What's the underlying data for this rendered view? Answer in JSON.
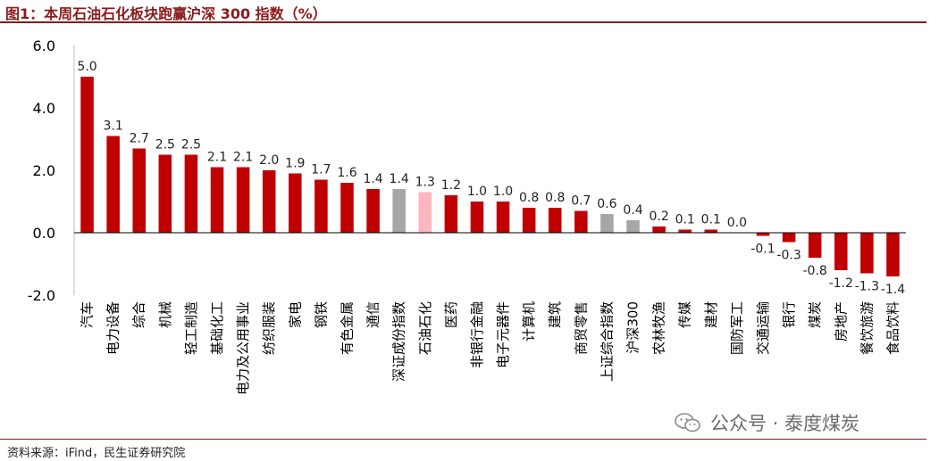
{
  "header": {
    "title": "图1：本周石油石化板块跑赢沪深 300 指数（%）"
  },
  "footer": {
    "source": "资料来源：iFind，民生证券研究院"
  },
  "watermark": {
    "text": "公众号 · 泰度煤炭",
    "icon": "wechat-icon"
  },
  "colors": {
    "primary_bar": "#c00000",
    "index_bar": "#a6a6a6",
    "highlight_bar": "#ffb6c1",
    "title": "#8b1a1a"
  },
  "chart_data": {
    "type": "bar",
    "title": "图1：本周石油石化板块跑赢沪深 300 指数（%）",
    "xlabel": "",
    "ylabel": "",
    "ylim": [
      -2.0,
      6.0
    ],
    "yticks": [
      "6.0",
      "4.0",
      "2.0",
      "0.0",
      "-2.0"
    ],
    "grid": false,
    "legend": "none",
    "categories": [
      "汽车",
      "电力设备",
      "综合",
      "机械",
      "轻工制造",
      "基础化工",
      "电力及公用事业",
      "纺织服装",
      "家电",
      "钢铁",
      "有色金属",
      "通信",
      "深证成份指数",
      "石油石化",
      "医药",
      "非银行金融",
      "电子元器件",
      "计算机",
      "建筑",
      "商贸零售",
      "上证综合指数",
      "沪深300",
      "农林牧渔",
      "传媒",
      "建材",
      "国防军工",
      "交通运输",
      "银行",
      "煤炭",
      "房地产",
      "餐饮旅游",
      "食品饮料"
    ],
    "values": [
      5.0,
      3.1,
      2.7,
      2.5,
      2.5,
      2.1,
      2.1,
      2.0,
      1.9,
      1.7,
      1.6,
      1.4,
      1.4,
      1.3,
      1.2,
      1.0,
      1.0,
      0.8,
      0.8,
      0.7,
      0.6,
      0.4,
      0.2,
      0.1,
      0.1,
      0.0,
      -0.1,
      -0.3,
      -0.8,
      -1.2,
      -1.3,
      -1.4
    ],
    "value_labels": [
      "5.0",
      "3.1",
      "2.7",
      "2.5",
      "2.5",
      "2.1",
      "2.1",
      "2.0",
      "1.9",
      "1.7",
      "1.6",
      "1.4",
      "1.4",
      "1.3",
      "1.2",
      "1.0",
      "1.0",
      "0.8",
      "0.8",
      "0.7",
      "0.6",
      "0.4",
      "0.2",
      "0.1",
      "0.1",
      "0.0",
      "-0.1",
      "-0.3",
      "-0.8",
      "-1.2",
      "-1.3",
      "-1.4"
    ],
    "bar_kind": [
      "sector",
      "sector",
      "sector",
      "sector",
      "sector",
      "sector",
      "sector",
      "sector",
      "sector",
      "sector",
      "sector",
      "sector",
      "index",
      "highlight",
      "sector",
      "sector",
      "sector",
      "sector",
      "sector",
      "sector",
      "index",
      "index",
      "sector",
      "sector",
      "sector",
      "sector",
      "sector",
      "sector",
      "sector",
      "sector",
      "sector",
      "sector"
    ]
  }
}
